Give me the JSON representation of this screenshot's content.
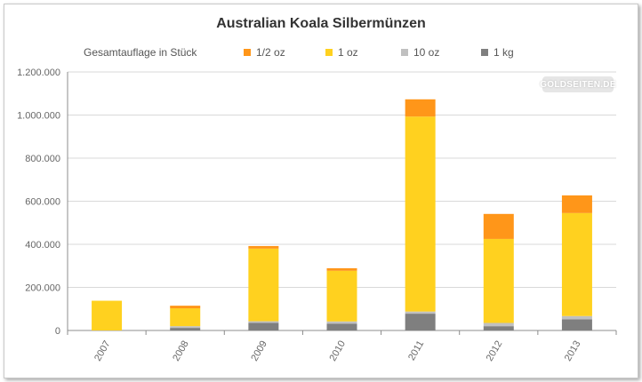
{
  "chart_data": {
    "type": "bar",
    "stacked": true,
    "title": "Australian Koala Silbermünzen",
    "subtitle": "Gesamtauflage in Stück",
    "categories": [
      "2007",
      "2008",
      "2009",
      "2010",
      "2011",
      "2012",
      "2013"
    ],
    "series": [
      {
        "name": "1 kg",
        "color": "#7f7f7f",
        "values": [
          0,
          12000,
          35000,
          32000,
          78000,
          20000,
          52000
        ]
      },
      {
        "name": "10 oz",
        "color": "#c0c0c0",
        "values": [
          0,
          8000,
          8000,
          10000,
          10000,
          15000,
          15000
        ]
      },
      {
        "name": "1 oz",
        "color": "#ffd11f",
        "values": [
          138000,
          83000,
          337000,
          235000,
          905000,
          390000,
          478000
        ]
      },
      {
        "name": "1/2 oz",
        "color": "#ff9619",
        "values": [
          0,
          12000,
          12000,
          12000,
          80000,
          116000,
          82000
        ]
      }
    ],
    "legend_order": [
      "1/2 oz",
      "1 oz",
      "10 oz",
      "1 kg"
    ],
    "ylim": [
      0,
      1200000
    ],
    "yticks": [
      0,
      200000,
      400000,
      600000,
      800000,
      1000000,
      1200000
    ],
    "ytick_labels": [
      "0",
      "200.000",
      "400.000",
      "600.000",
      "800.000",
      "1.000.000",
      "1.200.000"
    ],
    "grid": true,
    "legend_position": "top",
    "watermark": "GOLDSEITEN.DE"
  }
}
